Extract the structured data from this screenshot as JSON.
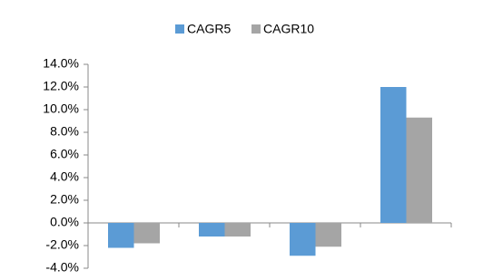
{
  "chart_data": {
    "type": "bar",
    "categories": [
      null,
      null,
      null,
      null
    ],
    "series": [
      {
        "name": "CAGR5",
        "color": "#5b9bd5",
        "values": [
          -2.2,
          -1.2,
          -2.9,
          12.0
        ]
      },
      {
        "name": "CAGR10",
        "color": "#a5a5a5",
        "values": [
          -1.8,
          -1.2,
          -2.1,
          9.3
        ]
      }
    ],
    "ylim": [
      -4,
      14
    ],
    "yticks": [
      {
        "value": -4,
        "label": "-4.0%"
      },
      {
        "value": -2,
        "label": "-2.0%"
      },
      {
        "value": 0,
        "label": "0.0%"
      },
      {
        "value": 2,
        "label": "2.0%"
      },
      {
        "value": 4,
        "label": "4.0%"
      },
      {
        "value": 6,
        "label": "6.0%"
      },
      {
        "value": 8,
        "label": "8.0%"
      },
      {
        "value": 10,
        "label": "10.0%"
      },
      {
        "value": 12,
        "label": "12.0%"
      },
      {
        "value": 14,
        "label": "14.0%"
      }
    ],
    "legend": "top"
  }
}
